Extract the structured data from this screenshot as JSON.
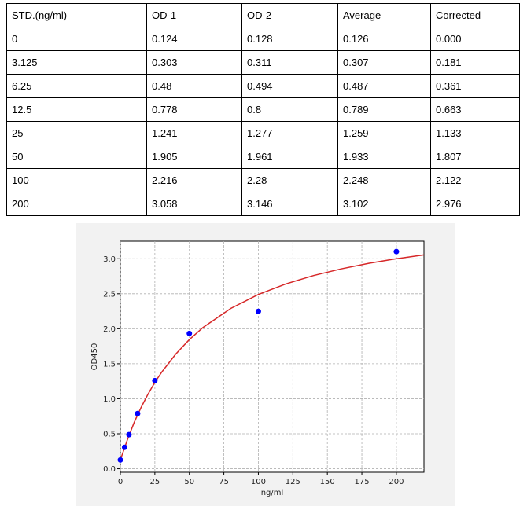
{
  "table": {
    "headers": [
      "STD.(ng/ml)",
      "OD-1",
      "OD-2",
      "Average",
      "Corrected"
    ],
    "rows": [
      [
        "0",
        "0.124",
        "0.128",
        "0.126",
        "0.000"
      ],
      [
        "3.125",
        "0.303",
        "0.311",
        "0.307",
        "0.181"
      ],
      [
        "6.25",
        "0.48",
        "0.494",
        "0.487",
        "0.361"
      ],
      [
        "12.5",
        "0.778",
        "0.8",
        "0.789",
        "0.663"
      ],
      [
        "25",
        "1.241",
        "1.277",
        "1.259",
        "1.133"
      ],
      [
        "50",
        "1.905",
        "1.961",
        "1.933",
        "1.807"
      ],
      [
        "100",
        "2.216",
        "2.28",
        "2.248",
        "2.122"
      ],
      [
        "200",
        "3.058",
        "3.146",
        "3.102",
        "2.976"
      ]
    ]
  },
  "chart_data": {
    "type": "scatter",
    "xlabel": "ng/ml",
    "ylabel": "OD450",
    "xlim": [
      0,
      220
    ],
    "ylim": [
      -0.05,
      3.25
    ],
    "xticks": [
      0,
      25,
      50,
      75,
      100,
      125,
      150,
      175,
      200
    ],
    "yticks": [
      0.0,
      0.5,
      1.0,
      1.5,
      2.0,
      2.5,
      3.0
    ],
    "ytick_labels": [
      "0.0",
      "0.5",
      "1.0",
      "1.5",
      "2.0",
      "2.5",
      "3.0"
    ],
    "grid": true,
    "points": {
      "x": [
        0,
        3.125,
        6.25,
        12.5,
        25,
        50,
        100,
        200
      ],
      "y": [
        0.126,
        0.307,
        0.487,
        0.789,
        1.259,
        1.933,
        2.248,
        3.102
      ],
      "color": "#0000ff"
    },
    "fit_curve": {
      "x": [
        0,
        5,
        10,
        15,
        20,
        25,
        30,
        40,
        50,
        60,
        80,
        100,
        120,
        140,
        160,
        180,
        200,
        220
      ],
      "y": [
        0.126,
        0.41,
        0.66,
        0.875,
        1.065,
        1.235,
        1.38,
        1.635,
        1.845,
        2.02,
        2.29,
        2.49,
        2.64,
        2.76,
        2.855,
        2.935,
        3.0,
        3.055
      ],
      "color": "#d62728"
    }
  }
}
